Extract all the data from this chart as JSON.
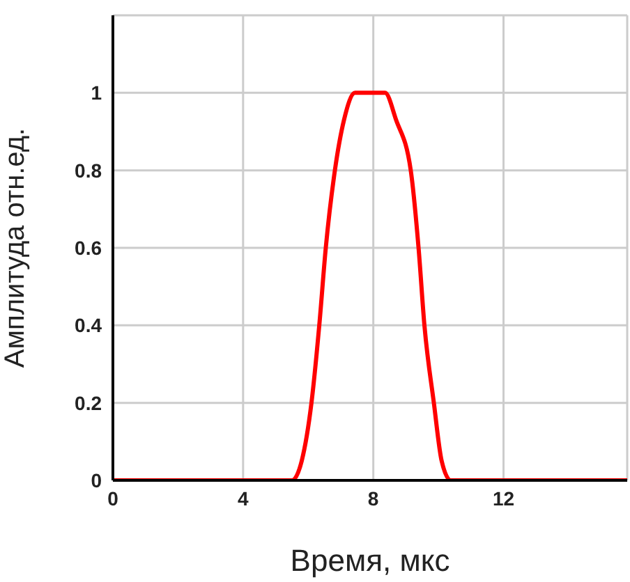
{
  "chart_data": {
    "type": "line",
    "xlabel": "Время, мкс",
    "ylabel": "Амплитуда отн.ед.",
    "x": [
      0,
      5.5,
      5.8,
      6.1,
      6.34,
      6.54,
      6.82,
      7.1,
      7.44,
      8.36,
      8.7,
      9.15,
      9.39,
      9.57,
      9.86,
      10.1,
      10.38,
      15.8
    ],
    "series": [
      {
        "color": "#ff0000",
        "values": [
          0,
          0,
          0.05,
          0.2,
          0.4,
          0.6,
          0.8,
          0.93,
          1,
          1,
          0.93,
          0.8,
          0.6,
          0.4,
          0.2,
          0.05,
          0,
          0
        ]
      }
    ],
    "xlim": [
      0,
      15.8
    ],
    "xticks": [
      0,
      4,
      8,
      12
    ],
    "ylim": [
      0,
      1.2
    ],
    "yticks": [
      0,
      0.2,
      0.4,
      0.6,
      0.8,
      1
    ],
    "grid": true,
    "marker": "none",
    "line_style": "solid",
    "legend": false
  }
}
